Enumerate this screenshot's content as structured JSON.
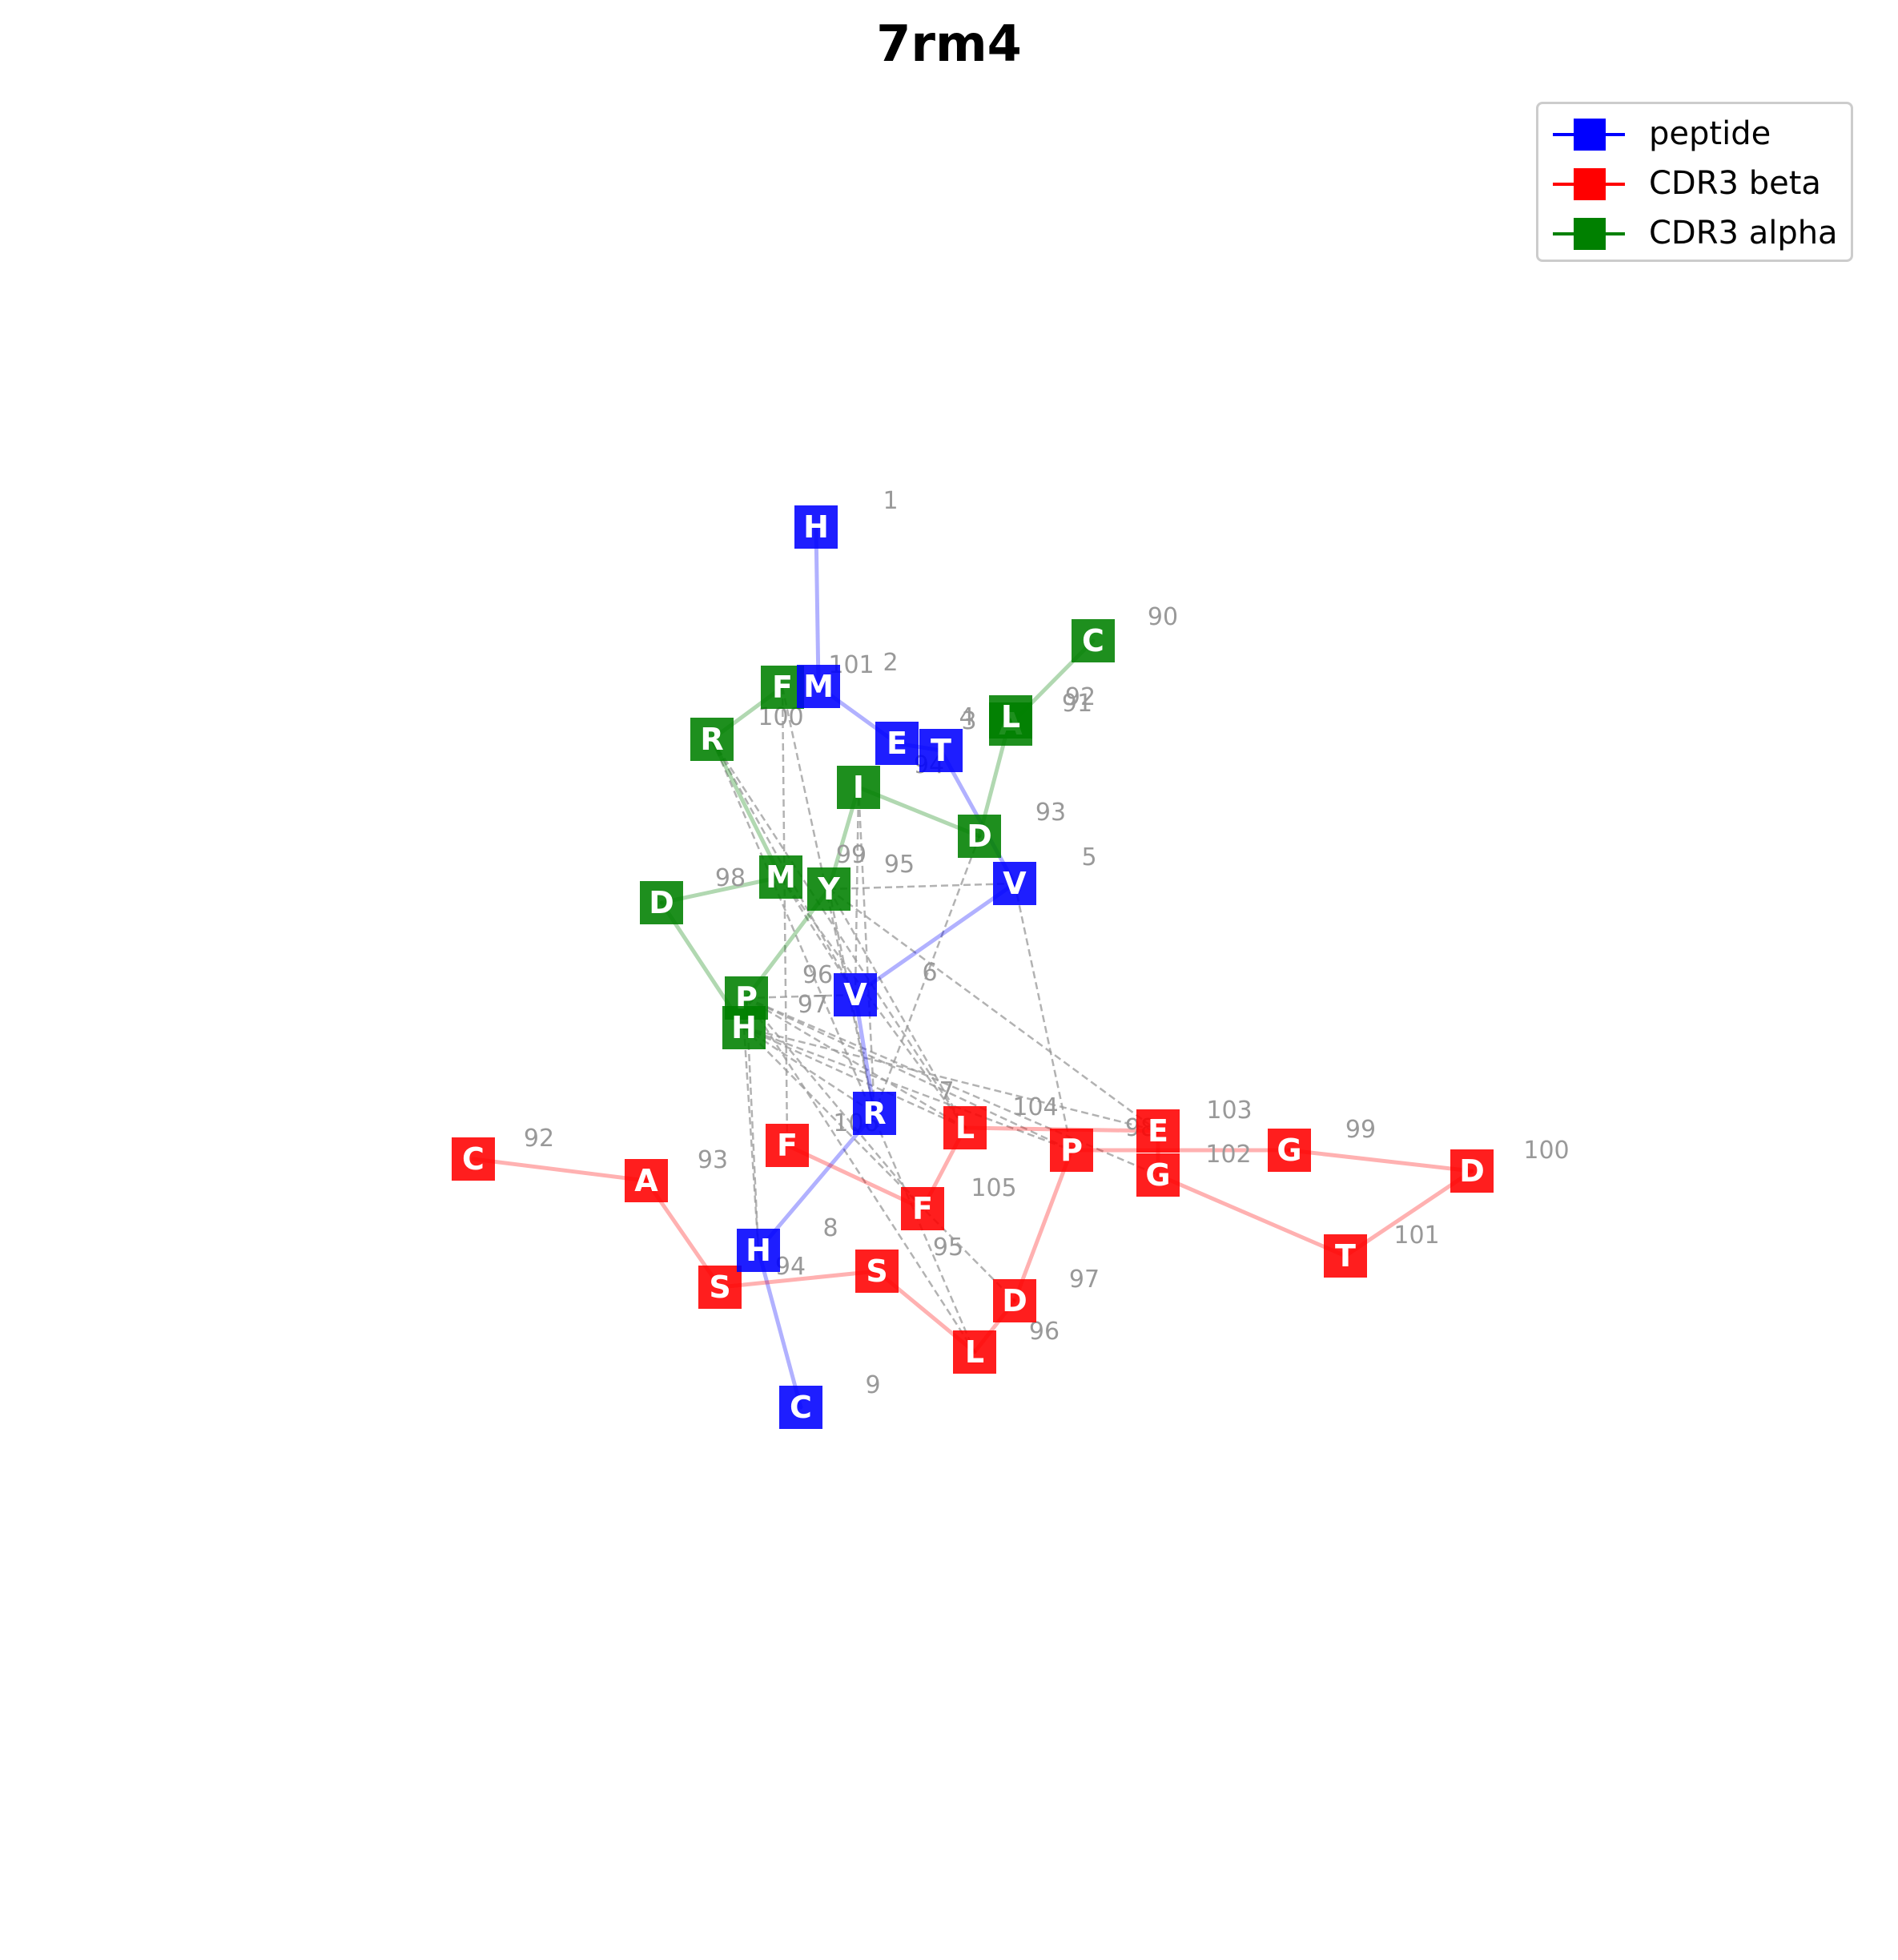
{
  "title": "7rm4",
  "legend": [
    {
      "label": "peptide",
      "color": "#0000ff"
    },
    {
      "label": "CDR3 beta",
      "color": "#ff0000"
    },
    {
      "label": "CDR3 alpha",
      "color": "#008000"
    }
  ],
  "colors": {
    "peptide": "#0000ff",
    "beta": "#ff0000",
    "alpha": "#008000",
    "contact": "#999999",
    "number": "#999999"
  },
  "chains": [
    {
      "id": "peptide",
      "residues": [
        {
          "n": "1",
          "aa": "H"
        },
        {
          "n": "2",
          "aa": "M"
        },
        {
          "n": "3",
          "aa": "E"
        },
        {
          "n": "4",
          "aa": "T"
        },
        {
          "n": "5",
          "aa": "V"
        },
        {
          "n": "6",
          "aa": "V"
        },
        {
          "n": "7",
          "aa": "R"
        },
        {
          "n": "8",
          "aa": "H"
        },
        {
          "n": "9",
          "aa": "C"
        }
      ]
    },
    {
      "id": "alpha",
      "residues": [
        {
          "n": "90",
          "aa": "C"
        },
        {
          "n": "91",
          "aa": "A"
        },
        {
          "n": "92",
          "aa": "L"
        },
        {
          "n": "93",
          "aa": "D"
        },
        {
          "n": "94",
          "aa": "I"
        },
        {
          "n": "95",
          "aa": "Y"
        },
        {
          "n": "96",
          "aa": "P"
        },
        {
          "n": "97",
          "aa": "H"
        },
        {
          "n": "98",
          "aa": "D"
        },
        {
          "n": "99",
          "aa": "M"
        },
        {
          "n": "100",
          "aa": "R"
        },
        {
          "n": "101",
          "aa": "F"
        }
      ]
    },
    {
      "id": "beta",
      "residues": [
        {
          "n": "92",
          "aa": "C"
        },
        {
          "n": "93",
          "aa": "A"
        },
        {
          "n": "94",
          "aa": "S"
        },
        {
          "n": "95",
          "aa": "S"
        },
        {
          "n": "96",
          "aa": "L"
        },
        {
          "n": "97",
          "aa": "D"
        },
        {
          "n": "98",
          "aa": "P"
        },
        {
          "n": "99",
          "aa": "G"
        },
        {
          "n": "100",
          "aa": "D"
        },
        {
          "n": "101",
          "aa": "T"
        },
        {
          "n": "102",
          "aa": "G"
        },
        {
          "n": "103",
          "aa": "E"
        },
        {
          "n": "104",
          "aa": "L"
        },
        {
          "n": "105",
          "aa": "F"
        },
        {
          "n": "106",
          "aa": "F"
        }
      ]
    }
  ],
  "contacts": [
    [
      "alpha:101",
      "beta:106"
    ],
    [
      "alpha:101",
      "peptide:7"
    ],
    [
      "alpha:96",
      "beta:98"
    ],
    [
      "alpha:96",
      "beta:104"
    ],
    [
      "alpha:96",
      "beta:105"
    ],
    [
      "alpha:96",
      "beta:96"
    ],
    [
      "alpha:96",
      "beta:102"
    ],
    [
      "alpha:96",
      "peptide:8"
    ],
    [
      "alpha:96",
      "peptide:6"
    ],
    [
      "alpha:97",
      "beta:104"
    ],
    [
      "alpha:97",
      "beta:97"
    ],
    [
      "alpha:97",
      "beta:98"
    ],
    [
      "alpha:97",
      "peptide:7"
    ],
    [
      "alpha:97",
      "peptide:8"
    ],
    [
      "alpha:97",
      "beta:103"
    ],
    [
      "alpha:95",
      "peptide:5"
    ],
    [
      "alpha:95",
      "beta:104"
    ],
    [
      "alpha:95",
      "beta:103"
    ],
    [
      "alpha:95",
      "peptide:7"
    ],
    [
      "alpha:94",
      "peptide:7"
    ],
    [
      "alpha:94",
      "peptide:6"
    ],
    [
      "alpha:93",
      "peptide:7"
    ],
    [
      "peptide:5",
      "beta:98"
    ],
    [
      "alpha:99",
      "beta:104"
    ],
    [
      "alpha:99",
      "peptide:6"
    ],
    [
      "alpha:100",
      "beta:104"
    ],
    [
      "alpha:100",
      "beta:96"
    ],
    [
      "alpha:100",
      "peptide:6"
    ]
  ]
}
